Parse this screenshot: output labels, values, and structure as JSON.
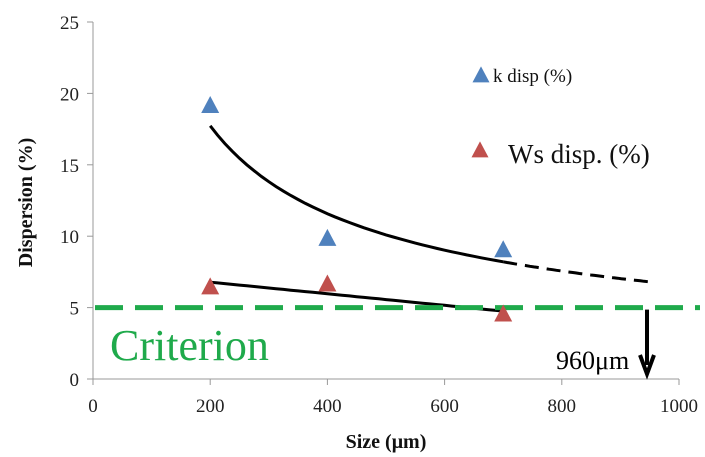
{
  "chart_data": {
    "type": "scatter",
    "xlabel": "Size (μm)",
    "ylabel": "Dispersion (%)",
    "xlim": [
      0,
      1000
    ],
    "ylim": [
      0,
      25
    ],
    "x_ticks": [
      "0",
      "200",
      "400",
      "600",
      "800",
      "1000"
    ],
    "y_ticks": [
      "0",
      "5",
      "10",
      "15",
      "20",
      "25"
    ],
    "grid": false,
    "legend_position": "top-right",
    "series": [
      {
        "name": "k disp (%)",
        "marker": "triangle",
        "color": "#4F81BD",
        "x": [
          200,
          400,
          700
        ],
        "y": [
          19.1,
          9.8,
          9.0
        ],
        "trend": {
          "type": "power",
          "x_solid": [
            200,
            700
          ],
          "x_dashed": [
            700,
            960
          ],
          "color": "#000000"
        }
      },
      {
        "name": "Ws disp. (%)",
        "marker": "triangle",
        "color": "#C0504D",
        "x": [
          200,
          400,
          700
        ],
        "y": [
          6.4,
          6.6,
          4.5
        ],
        "trend": {
          "type": "linear",
          "x_solid": [
            200,
            700
          ],
          "color": "#000000"
        }
      }
    ],
    "criterion": {
      "label": "Criterion",
      "y": 5,
      "color": "#1FAA4B"
    },
    "annotation": {
      "label": "960μm",
      "x": 960
    }
  }
}
